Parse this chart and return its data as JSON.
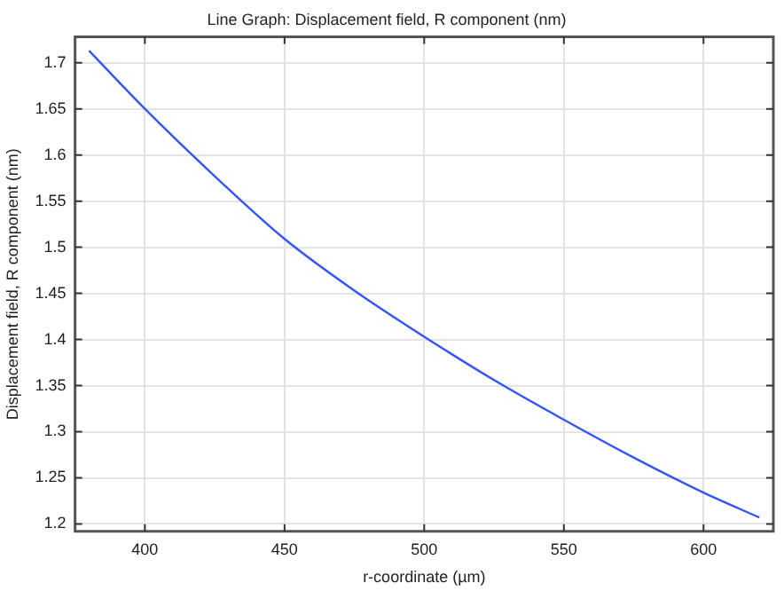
{
  "chart_data": {
    "type": "line",
    "title": "Line Graph: Displacement field, R component (nm)",
    "xlabel": "r-coordinate (µm)",
    "ylabel": "Displacement field, R component (nm)",
    "x": [
      380,
      400,
      425,
      450,
      475,
      500,
      525,
      550,
      575,
      600,
      620
    ],
    "series": [
      {
        "color": "#3355ff",
        "values": [
          1.713,
          1.65,
          1.577,
          1.509,
          1.453,
          1.403,
          1.356,
          1.313,
          1.272,
          1.234,
          1.207
        ]
      }
    ],
    "xlim": [
      375,
      625
    ],
    "xticks": [
      400,
      450,
      500,
      550,
      600
    ],
    "ylim": [
      1.192,
      1.728
    ],
    "yticks": [
      1.2,
      1.25,
      1.3,
      1.35,
      1.4,
      1.45,
      1.5,
      1.55,
      1.6,
      1.65,
      1.7
    ],
    "grid": true,
    "legend": false,
    "marker": "none",
    "line_style": "solid"
  }
}
